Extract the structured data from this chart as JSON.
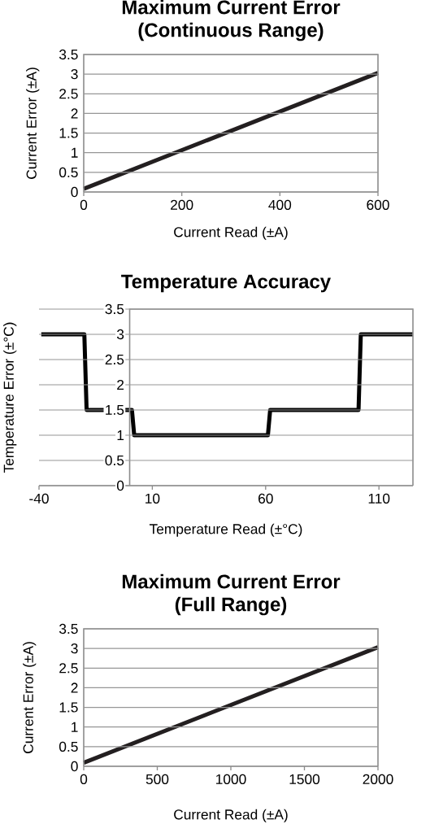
{
  "chart_data": [
    {
      "type": "line",
      "title": "Maximum Current Error (Continuous Range)",
      "xlabel": "Current Read (±A)",
      "ylabel": "Current Error (±A)",
      "x": [
        0,
        600
      ],
      "values": [
        0.08,
        3.03
      ],
      "color": "#231f20",
      "xlim": [
        0,
        600
      ],
      "ylim": [
        0,
        3.5
      ],
      "xticks": [
        0,
        200,
        400,
        600
      ],
      "yticks": [
        0,
        0.5,
        1,
        1.5,
        2,
        2.5,
        3,
        3.5
      ],
      "grid": "y",
      "line_style": "solid"
    },
    {
      "type": "line",
      "title": "Temperature Accuracy",
      "xlabel": "Temperature Read (±°C)",
      "ylabel": "Temperature Error (±°C)",
      "x": [
        -39,
        -20,
        -19,
        1,
        2,
        61,
        62,
        101,
        102,
        125
      ],
      "values": [
        3,
        3,
        1.5,
        1.5,
        1,
        1,
        1.5,
        1.5,
        3,
        3
      ],
      "color": "#000000",
      "xlim": [
        -40,
        125
      ],
      "ylim": [
        0,
        3.5
      ],
      "xticks": [
        -40,
        10,
        60,
        110
      ],
      "yticks": [
        0,
        0.5,
        1,
        1.5,
        2,
        2.5,
        3,
        3.5
      ],
      "grid": "y",
      "line_style": "solid"
    },
    {
      "type": "line",
      "title": "Maximum Current Error (Full Range)",
      "xlabel": "Current Read (±A)",
      "ylabel": "Current Error (±A)",
      "x": [
        0,
        2000
      ],
      "values": [
        0.09,
        3.03
      ],
      "color": "#231f20",
      "xlim": [
        0,
        2000
      ],
      "ylim": [
        0,
        3.5
      ],
      "xticks": [
        0,
        500,
        1000,
        1500,
        2000
      ],
      "yticks": [
        0,
        0.5,
        1,
        1.5,
        2,
        2.5,
        3,
        3.5
      ],
      "grid": "y",
      "line_style": "solid"
    }
  ]
}
